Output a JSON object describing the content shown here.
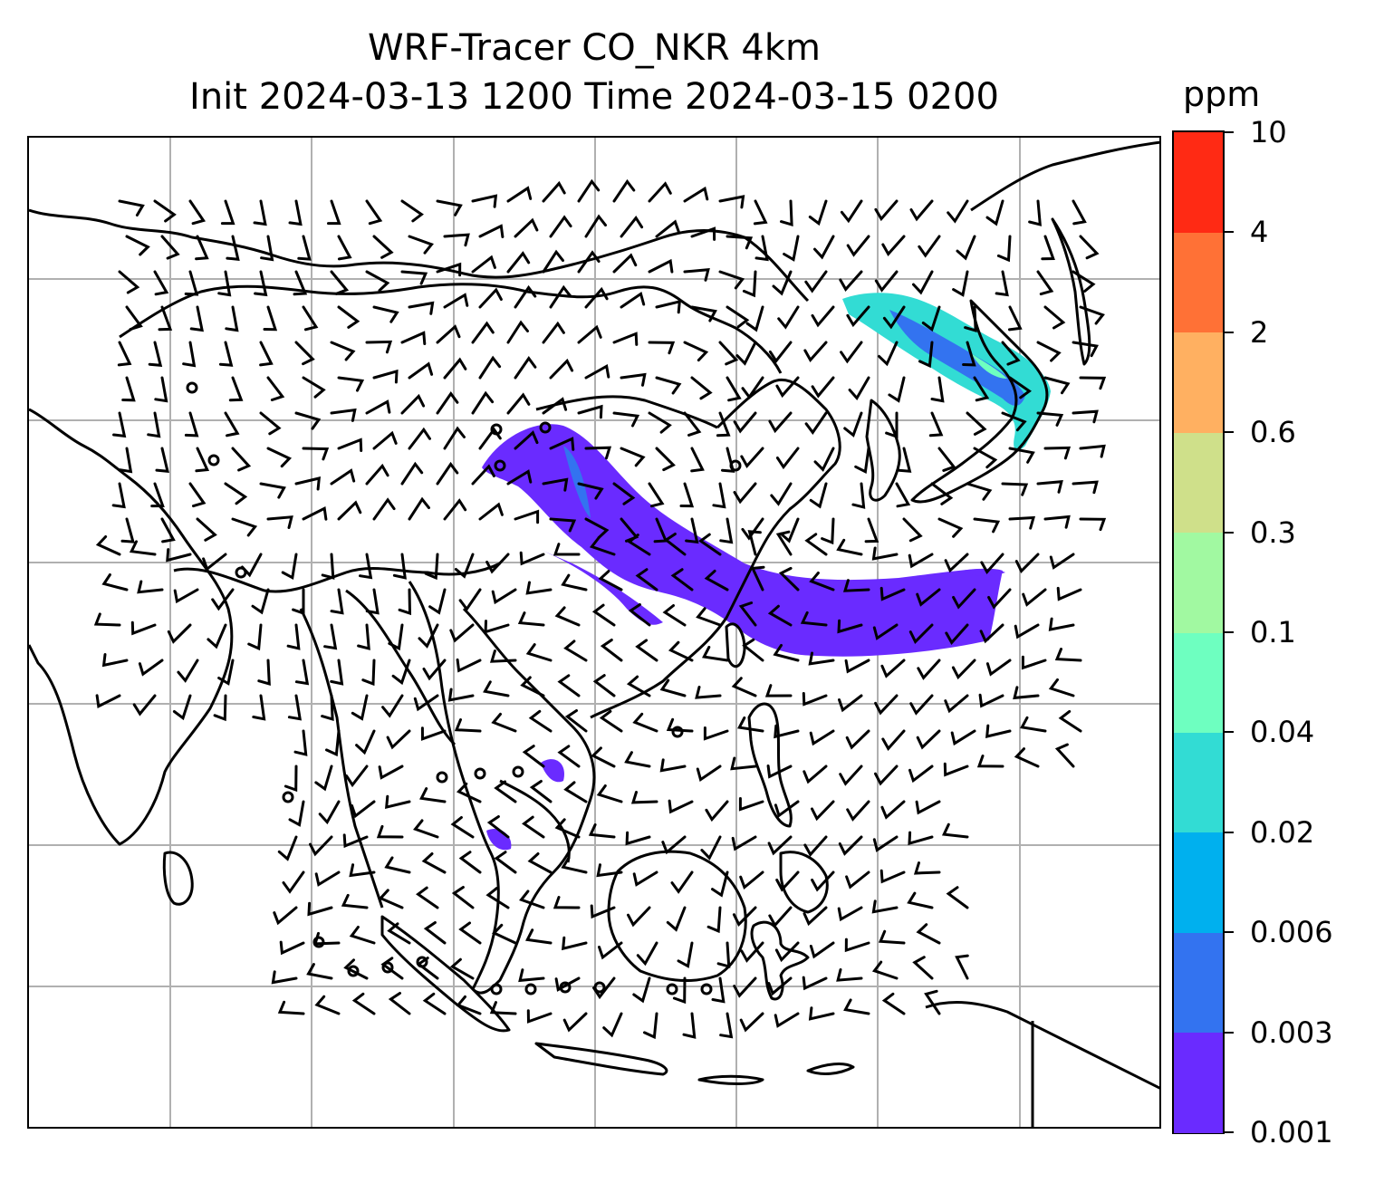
{
  "title_line1": "WRF-Tracer CO_NKR 4km",
  "title_line2": "Init 2024-03-13 1200 Time 2024-03-15 0200",
  "colorbar": {
    "unit": "ppm",
    "levels": [
      "0.001",
      "0.003",
      "0.006",
      "0.02",
      "0.04",
      "0.1",
      "0.3",
      "0.6",
      "2",
      "4",
      "10"
    ],
    "colors": [
      "#6a2bff",
      "#3373f0",
      "#00b0ee",
      "#32dcd4",
      "#6effc0",
      "#a1f9a1",
      "#cfe08a",
      "#ffb061",
      "#ff7136",
      "#ff2a14"
    ]
  },
  "map": {
    "gridlines": true,
    "features": [
      "coastlines",
      "country-borders",
      "wind-barbs",
      "calm-wind-circles",
      "tracer-plume"
    ],
    "plume_colors": {
      "main": "#6a2bff",
      "mid": "#3373f0",
      "high": "#32dcd4"
    }
  }
}
